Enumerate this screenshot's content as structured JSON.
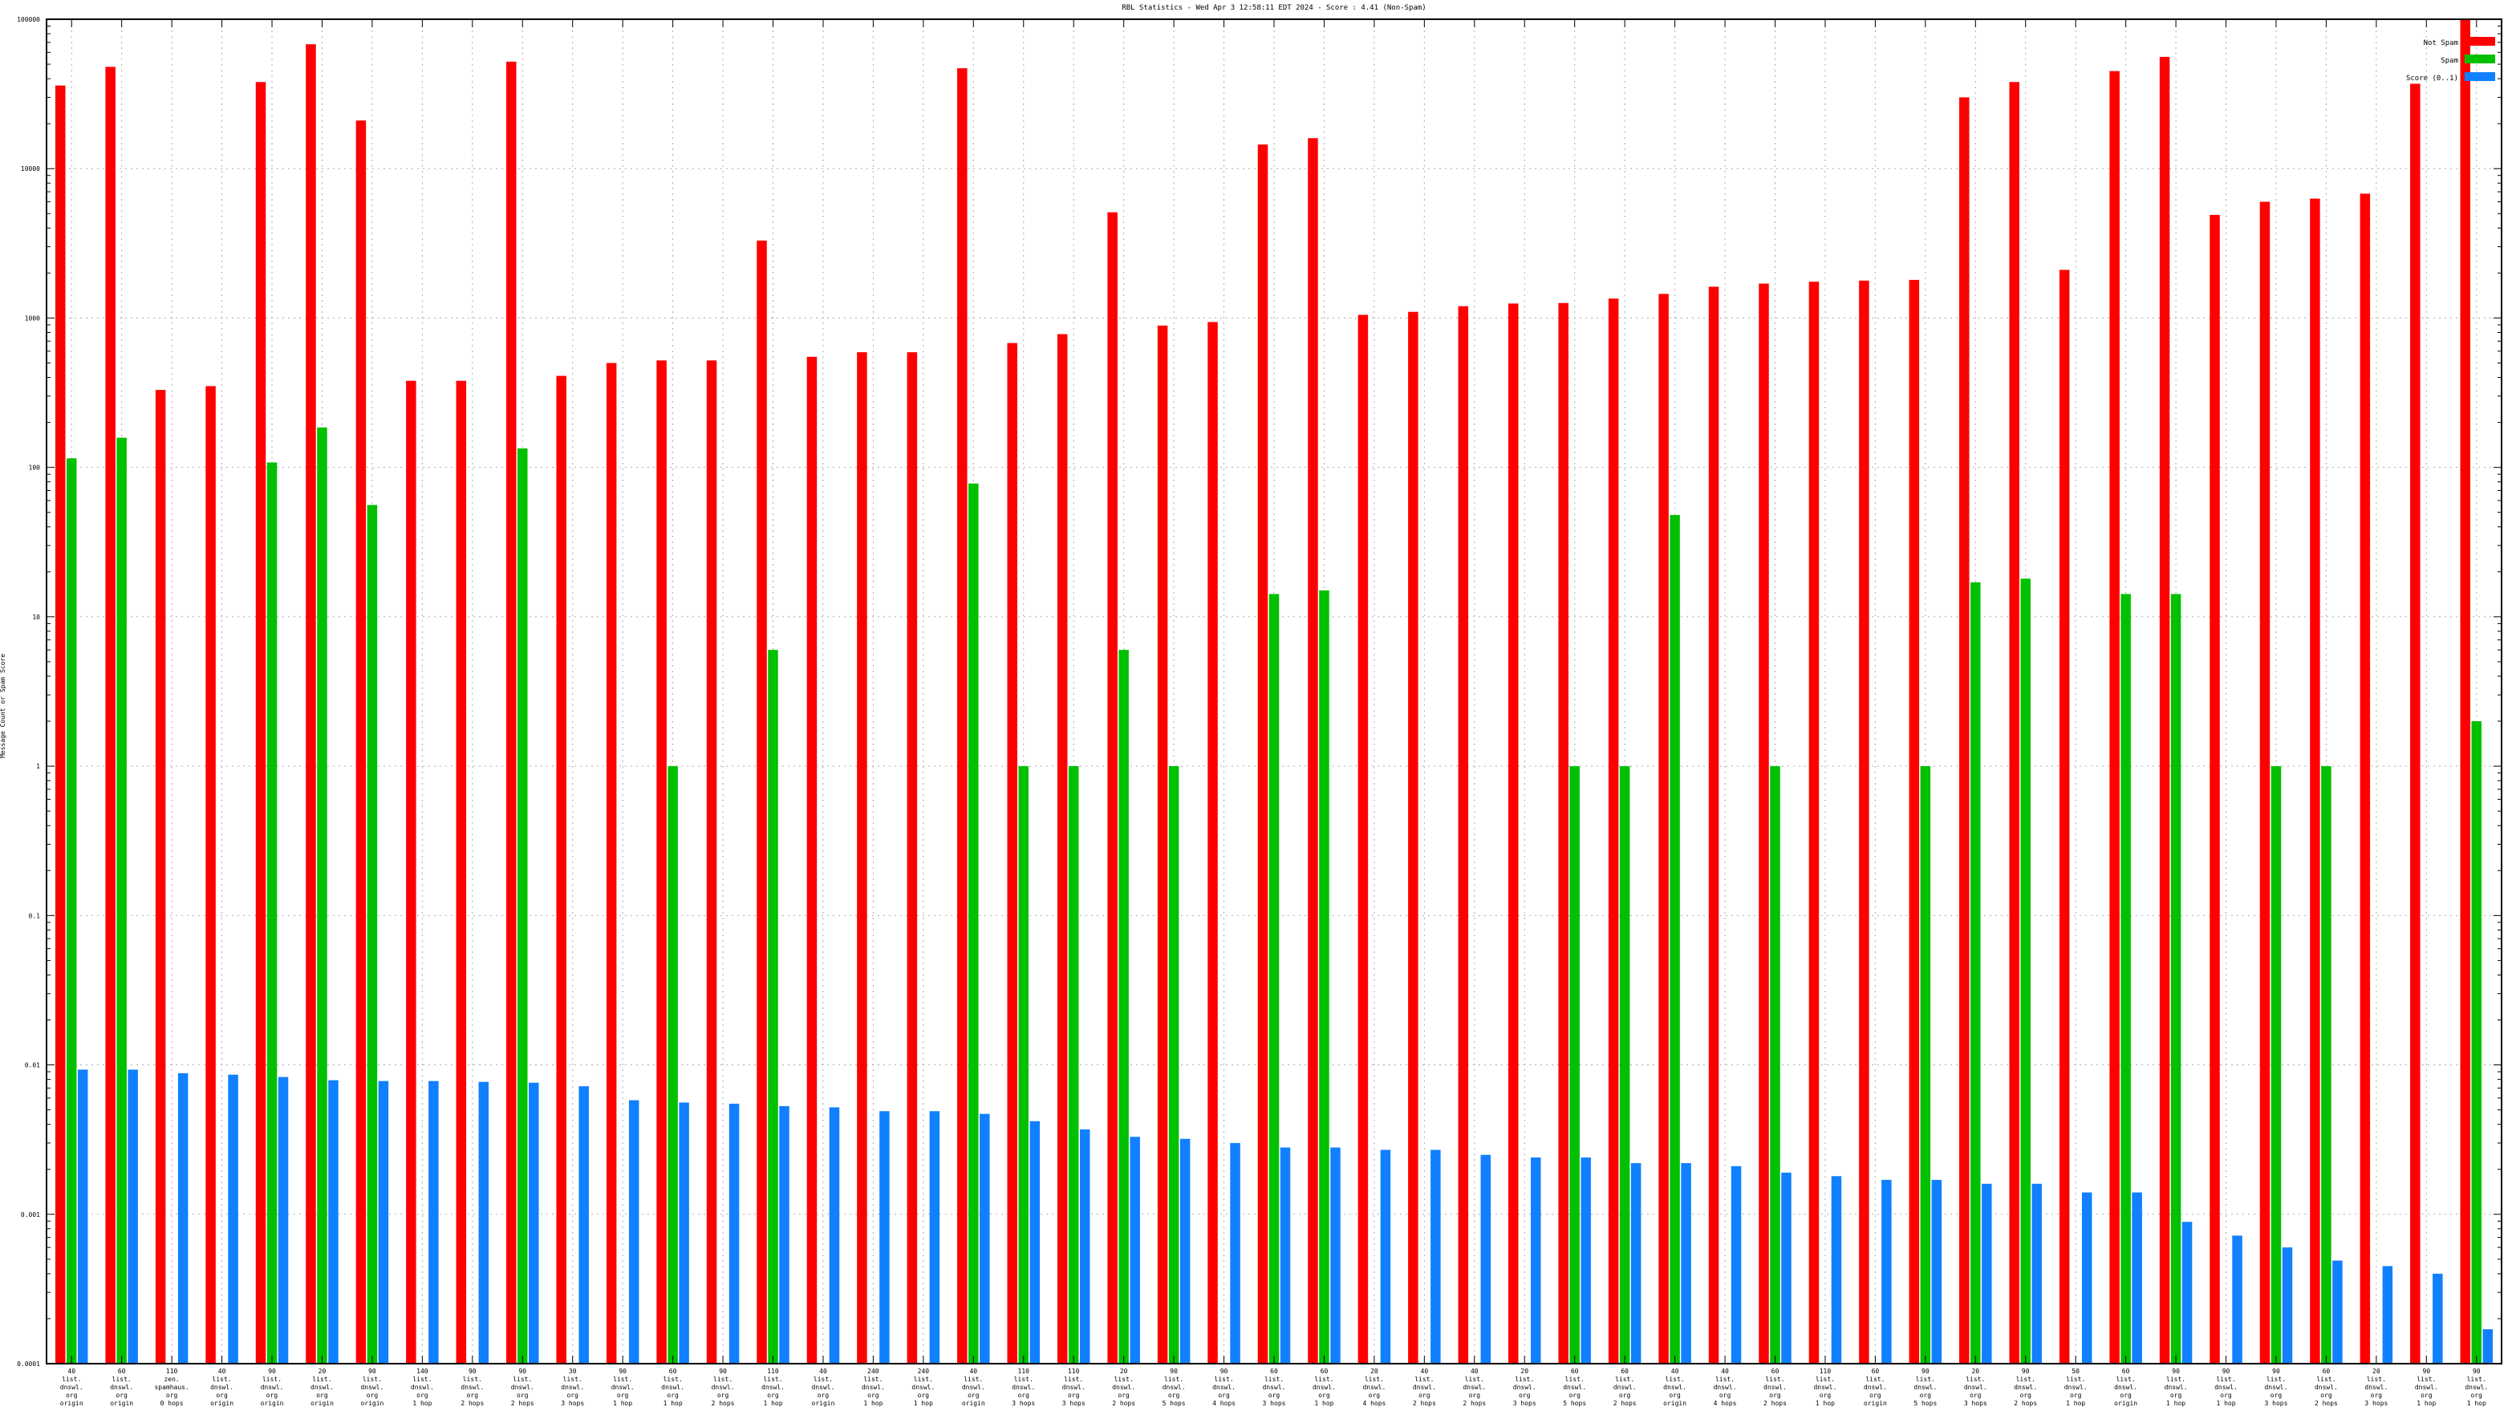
{
  "chart_data": {
    "type": "bar",
    "title": "RBL Statistics - Wed Apr  3 12:58:11 EDT 2024 - Score : 4.41 (Non-Spam)",
    "ylabel": "Message Count or Spam Score",
    "xlabel": "",
    "yscale": "log",
    "ylim": [
      0.0001,
      100000
    ],
    "yticks": [
      {
        "value": 100000,
        "label": "100000"
      },
      {
        "value": 10000,
        "label": "10000"
      },
      {
        "value": 1000,
        "label": "1000"
      },
      {
        "value": 100,
        "label": "100"
      },
      {
        "value": 10,
        "label": "10"
      },
      {
        "value": 1,
        "label": "1"
      },
      {
        "value": 0.1,
        "label": "0.1"
      },
      {
        "value": 0.01,
        "label": "0.01"
      },
      {
        "value": 0.001,
        "label": "0.001"
      },
      {
        "value": 0.0001,
        "label": "0.0001"
      }
    ],
    "grid": true,
    "legend_position": "top-right",
    "categories": [
      "40\nlist.\ndnswl.\norg\norigin",
      "60\nlist.\ndnswl.\norg\norigin",
      "110\nzen.\nspamhaus.\norg\n0 hops",
      "40\nlist.\ndnswl.\norg\norigin",
      "90\nlist.\ndnswl.\norg\norigin",
      "20\nlist.\ndnswl.\norg\norigin",
      "90\nlist.\ndnswl.\norg\norigin",
      "140\nlist.\ndnswl.\norg\n1 hop",
      "90\nlist.\ndnswl.\norg\n2 hops",
      "90\nlist.\ndnswl.\norg\n2 hops",
      "30\nlist.\ndnswl.\norg\n3 hops",
      "90\nlist.\ndnswl.\norg\n1 hop",
      "60\nlist.\ndnswl.\norg\n1 hop",
      "90\nlist.\ndnswl.\norg\n2 hops",
      "110\nlist.\ndnswl.\norg\n1 hop",
      "40\nlist.\ndnswl.\norg\norigin",
      "240\nlist.\ndnswl.\norg\n1 hop",
      "240\nlist.\ndnswl.\norg\n1 hop",
      "40\nlist.\ndnswl.\norg\norigin",
      "110\nlist.\ndnswl.\norg\n3 hops",
      "110\nlist.\ndnswl.\norg\n3 hops",
      "20\nlist.\ndnswl.\norg\n2 hops",
      "90\nlist.\ndnswl.\norg\n5 hops",
      "90\nlist.\ndnswl.\norg\n4 hops",
      "60\nlist.\ndnswl.\norg\n3 hops",
      "60\nlist.\ndnswl.\norg\n1 hop",
      "20\nlist.\ndnswl.\norg\n4 hops",
      "40\nlist.\ndnswl.\norg\n2 hops",
      "40\nlist.\ndnswl.\norg\n2 hops",
      "20\nlist.\ndnswl.\norg\n3 hops",
      "60\nlist.\ndnswl.\norg\n5 hops",
      "60\nlist.\ndnswl.\norg\n2 hops",
      "40\nlist.\ndnswl.\norg\norigin",
      "40\nlist.\ndnswl.\norg\n4 hops",
      "60\nlist.\ndnswl.\norg\n2 hops",
      "110\nlist.\ndnswl.\norg\n1 hop",
      "60\nlist.\ndnswl.\norg\norigin",
      "90\nlist.\ndnswl.\norg\n5 hops",
      "20\nlist.\ndnswl.\norg\n3 hops",
      "90\nlist.\ndnswl.\norg\n2 hops",
      "50\nlist.\ndnswl.\norg\n1 hop",
      "60\nlist.\ndnswl.\norg\norigin",
      "90\nlist.\ndnswl.\norg\n1 hop",
      "90\nlist.\ndnswl.\norg\n1 hop",
      "90\nlist.\ndnswl.\norg\n3 hops",
      "60\nlist.\ndnswl.\norg\n2 hops",
      "20\nlist.\ndnswl.\norg\n3 hops",
      "90\nlist.\ndnswl.\norg\n1 hop",
      "90\nlist.\ndnswl.\norg\n1 hop"
    ],
    "series": [
      {
        "name": "Not Spam",
        "color": "#ff0000",
        "values": [
          36000,
          48000,
          330,
          350,
          38000,
          68000,
          21000,
          380,
          380,
          52000,
          410,
          500,
          520,
          520,
          3300,
          550,
          590,
          590,
          47000,
          680,
          780,
          5100,
          890,
          940,
          14500,
          16000,
          1050,
          1100,
          1200,
          1250,
          1260,
          1350,
          1450,
          1620,
          1700,
          1750,
          1780,
          1800,
          30000,
          38000,
          2100,
          45000,
          56000,
          4900,
          6000,
          6300,
          6800,
          37000,
          100000
        ]
      },
      {
        "name": "Spam",
        "color": "#00c000",
        "values": [
          115,
          158,
          0,
          0,
          108,
          185,
          56,
          0,
          0,
          134,
          0,
          0,
          1,
          0,
          6,
          0,
          0,
          0,
          78,
          1,
          1,
          6,
          1,
          0,
          14.2,
          15,
          0,
          0,
          0,
          0,
          1,
          1,
          48,
          0,
          1,
          0,
          0,
          1,
          17,
          18,
          0,
          14.2,
          14.2,
          0,
          1,
          1,
          0,
          0,
          2
        ]
      },
      {
        "name": "Score (0..1)",
        "color": "#1080ff",
        "values": [
          0.0093,
          0.0093,
          0.0088,
          0.0086,
          0.0083,
          0.0079,
          0.0078,
          0.0078,
          0.0077,
          0.0076,
          0.0072,
          0.0058,
          0.0056,
          0.0055,
          0.0053,
          0.0052,
          0.0049,
          0.0049,
          0.0047,
          0.0042,
          0.0037,
          0.0033,
          0.0032,
          0.003,
          0.0028,
          0.0028,
          0.0027,
          0.0027,
          0.0025,
          0.0024,
          0.0024,
          0.0022,
          0.0022,
          0.0021,
          0.0019,
          0.0018,
          0.0017,
          0.0017,
          0.0016,
          0.0016,
          0.0014,
          0.0014,
          0.00089,
          0.00072,
          0.0006,
          0.00049,
          0.00045,
          0.0004,
          0.00017
        ]
      }
    ]
  }
}
